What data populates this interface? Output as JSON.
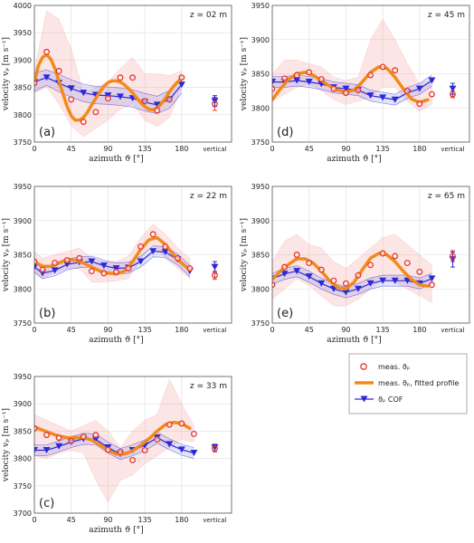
{
  "colors": {
    "measured": "#e8362a",
    "fitted": "#f28a1a",
    "cof": "#2a2ad8",
    "band_red": "#f4a3a3",
    "band_blue": "#8f8fe6",
    "grid": "#dddddd",
    "axis": "#555555"
  },
  "legend": {
    "items": [
      {
        "marker": "circle",
        "label": "meas. ϑₚ"
      },
      {
        "marker": "line",
        "label": "meas. ϑₚ, fitted profile"
      },
      {
        "marker": "triangle",
        "label": "ϑₚ COF"
      }
    ]
  },
  "axis_text": {
    "xlabel": "azimuth ϑ [°]",
    "ylabel": "velocity vₚ [m s⁻¹]",
    "vertical_tick": "vertical"
  },
  "chart_data": [
    {
      "type": "line",
      "panel_label": "(a)",
      "depth_label": "z = 02 m",
      "xlim": [
        0,
        200
      ],
      "ylim": [
        3750,
        4000
      ],
      "xticks": [
        0,
        45,
        90,
        135,
        180
      ],
      "yticks": [
        3750,
        3800,
        3850,
        3900,
        3950,
        4000
      ],
      "grid": true,
      "measured": {
        "x": [
          0,
          15,
          30,
          45,
          60,
          75,
          90,
          105,
          120,
          135,
          150,
          165,
          180
        ],
        "y": [
          3858,
          3915,
          3880,
          3828,
          3787,
          3805,
          3830,
          3868,
          3868,
          3825,
          3808,
          3828,
          3868
        ]
      },
      "fitted": {
        "x": [
          0,
          5,
          10,
          15,
          20,
          25,
          30,
          35,
          40,
          45,
          50,
          55,
          60,
          65,
          70,
          75,
          80,
          85,
          90,
          95,
          100,
          105,
          110,
          115,
          120,
          125,
          130,
          135,
          140,
          145,
          150,
          155,
          160,
          165,
          170,
          175,
          180
        ],
        "y": [
          3860,
          3890,
          3905,
          3910,
          3902,
          3885,
          3862,
          3838,
          3815,
          3798,
          3790,
          3790,
          3795,
          3805,
          3818,
          3830,
          3842,
          3852,
          3859,
          3862,
          3862,
          3860,
          3855,
          3848,
          3840,
          3831,
          3822,
          3815,
          3810,
          3809,
          3812,
          3820,
          3830,
          3842,
          3852,
          3860,
          3866
        ]
      },
      "cof": {
        "x": [
          0,
          15,
          30,
          45,
          60,
          75,
          90,
          105,
          120,
          135,
          150,
          165,
          180
        ],
        "y": [
          3860,
          3868,
          3858,
          3848,
          3840,
          3836,
          3835,
          3833,
          3830,
          3823,
          3818,
          3828,
          3855
        ]
      },
      "cof_band_upper": [
        3877,
        3882,
        3874,
        3864,
        3856,
        3852,
        3851,
        3849,
        3846,
        3839,
        3834,
        3844,
        3871
      ],
      "cof_band_lower": [
        3843,
        3854,
        3842,
        3832,
        3824,
        3820,
        3819,
        3817,
        3814,
        3807,
        3802,
        3812,
        3839
      ],
      "meas_band_upper": [
        3880,
        3990,
        3975,
        3920,
        3840,
        3850,
        3860,
        3885,
        3905,
        3875,
        3875,
        3872,
        3880
      ],
      "meas_band_lower": [
        3840,
        3850,
        3820,
        3780,
        3760,
        3775,
        3790,
        3810,
        3820,
        3790,
        3778,
        3795,
        3850
      ],
      "vertical": {
        "measured": 3820,
        "measured_err": [
          3808,
          3832
        ],
        "cof": 3825,
        "cof_err": [
          3815,
          3835
        ]
      }
    },
    {
      "type": "line",
      "panel_label": "(b)",
      "depth_label": "z = 22 m",
      "xlim": [
        0,
        200
      ],
      "ylim": [
        3750,
        3950
      ],
      "xticks": [
        0,
        45,
        90,
        135,
        180
      ],
      "yticks": [
        3750,
        3800,
        3850,
        3900,
        3950
      ],
      "grid": true,
      "measured": {
        "x": [
          0,
          10,
          25,
          40,
          55,
          70,
          85,
          100,
          115,
          130,
          145,
          160,
          175,
          190
        ],
        "y": [
          3840,
          3828,
          3838,
          3842,
          3845,
          3826,
          3823,
          3825,
          3830,
          3862,
          3880,
          3862,
          3845,
          3830
        ]
      },
      "fitted": {
        "x": [
          0,
          10,
          20,
          30,
          40,
          50,
          60,
          70,
          80,
          90,
          100,
          110,
          120,
          130,
          140,
          150,
          160,
          170,
          180,
          190
        ],
        "y": [
          3840,
          3833,
          3833,
          3838,
          3843,
          3842,
          3838,
          3832,
          3826,
          3823,
          3822,
          3826,
          3840,
          3858,
          3872,
          3875,
          3865,
          3850,
          3838,
          3828
        ]
      },
      "cof": {
        "x": [
          0,
          10,
          25,
          40,
          55,
          70,
          85,
          100,
          115,
          130,
          145,
          160,
          175,
          190
        ],
        "y": [
          3832,
          3823,
          3827,
          3836,
          3839,
          3840,
          3834,
          3830,
          3831,
          3840,
          3855,
          3854,
          3843,
          3826
        ]
      },
      "cof_band_upper": [
        3840,
        3831,
        3835,
        3844,
        3847,
        3848,
        3842,
        3838,
        3839,
        3848,
        3863,
        3862,
        3851,
        3834
      ],
      "cof_band_lower": [
        3824,
        3815,
        3819,
        3828,
        3831,
        3832,
        3826,
        3822,
        3823,
        3832,
        3847,
        3846,
        3835,
        3818
      ],
      "meas_band_upper": [
        3855,
        3845,
        3850,
        3855,
        3860,
        3845,
        3840,
        3840,
        3848,
        3875,
        3895,
        3880,
        3860,
        3845
      ],
      "meas_band_lower": [
        3825,
        3815,
        3825,
        3830,
        3830,
        3810,
        3810,
        3812,
        3815,
        3845,
        3865,
        3845,
        3830,
        3815
      ],
      "vertical": {
        "measured": 3820,
        "measured_err": [
          3814,
          3826
        ],
        "cof": 3832,
        "cof_err": [
          3824,
          3840
        ]
      }
    },
    {
      "type": "line",
      "panel_label": "(c)",
      "depth_label": "z = 33 m",
      "xlim": [
        0,
        200
      ],
      "ylim": [
        3700,
        3950
      ],
      "xticks": [
        0,
        45,
        90,
        135,
        180
      ],
      "yticks": [
        3700,
        3750,
        3800,
        3850,
        3900,
        3950
      ],
      "grid": true,
      "measured": {
        "x": [
          0,
          15,
          30,
          45,
          60,
          75,
          90,
          105,
          120,
          135,
          150,
          165,
          180,
          195
        ],
        "y": [
          3855,
          3843,
          3838,
          3832,
          3840,
          3843,
          3816,
          3812,
          3797,
          3815,
          3835,
          3862,
          3864,
          3845
        ]
      },
      "fitted": {
        "x": [
          0,
          10,
          20,
          30,
          40,
          50,
          60,
          70,
          80,
          90,
          100,
          110,
          120,
          130,
          140,
          150,
          160,
          170,
          180,
          190
        ],
        "y": [
          3858,
          3852,
          3846,
          3841,
          3838,
          3838,
          3838,
          3834,
          3825,
          3815,
          3808,
          3808,
          3814,
          3824,
          3836,
          3850,
          3862,
          3866,
          3864,
          3855
        ]
      },
      "cof": {
        "x": [
          0,
          15,
          30,
          45,
          60,
          75,
          90,
          105,
          120,
          135,
          150,
          165,
          180,
          195
        ],
        "y": [
          3815,
          3815,
          3822,
          3830,
          3836,
          3835,
          3820,
          3808,
          3815,
          3824,
          3838,
          3826,
          3816,
          3810
        ]
      },
      "cof_band_upper": [
        3825,
        3825,
        3832,
        3840,
        3846,
        3845,
        3830,
        3818,
        3825,
        3834,
        3848,
        3836,
        3826,
        3820
      ],
      "cof_band_lower": [
        3805,
        3805,
        3812,
        3820,
        3826,
        3825,
        3810,
        3798,
        3805,
        3814,
        3828,
        3816,
        3806,
        3800
      ],
      "meas_band_upper": [
        3880,
        3870,
        3860,
        3850,
        3860,
        3870,
        3850,
        3820,
        3850,
        3870,
        3880,
        3945,
        3900,
        3860
      ],
      "meas_band_lower": [
        3805,
        3800,
        3810,
        3815,
        3810,
        3760,
        3720,
        3760,
        3770,
        3790,
        3805,
        3820,
        3835,
        3830
      ],
      "vertical": {
        "measured": 3818,
        "measured_err": [
          3812,
          3824
        ],
        "cof": 3820,
        "cof_err": [
          3814,
          3826
        ]
      }
    },
    {
      "type": "line",
      "panel_label": "(d)",
      "depth_label": "z = 45 m",
      "xlim": [
        0,
        200
      ],
      "ylim": [
        3750,
        3950
      ],
      "xticks": [
        0,
        45,
        90,
        135,
        180
      ],
      "yticks": [
        3750,
        3800,
        3850,
        3900,
        3950
      ],
      "grid": true,
      "measured": {
        "x": [
          0,
          15,
          30,
          45,
          60,
          75,
          90,
          105,
          120,
          135,
          150,
          165,
          180,
          195
        ],
        "y": [
          3828,
          3843,
          3848,
          3852,
          3842,
          3828,
          3822,
          3826,
          3848,
          3860,
          3855,
          3825,
          3806,
          3820
        ]
      },
      "fitted": {
        "x": [
          0,
          10,
          20,
          30,
          40,
          50,
          60,
          70,
          80,
          90,
          100,
          110,
          120,
          130,
          140,
          150,
          160,
          170,
          180,
          190
        ],
        "y": [
          3812,
          3828,
          3842,
          3850,
          3852,
          3848,
          3840,
          3832,
          3826,
          3823,
          3826,
          3838,
          3852,
          3860,
          3858,
          3845,
          3828,
          3813,
          3808,
          3812
        ]
      },
      "cof": {
        "x": [
          0,
          15,
          30,
          45,
          60,
          75,
          90,
          105,
          120,
          135,
          150,
          165,
          180,
          195
        ],
        "y": [
          3838,
          3838,
          3840,
          3838,
          3835,
          3830,
          3828,
          3826,
          3818,
          3815,
          3812,
          3822,
          3828,
          3840
        ]
      },
      "cof_band_upper": [
        3846,
        3846,
        3848,
        3846,
        3843,
        3838,
        3836,
        3834,
        3826,
        3823,
        3820,
        3830,
        3836,
        3848
      ],
      "cof_band_lower": [
        3830,
        3830,
        3832,
        3830,
        3827,
        3822,
        3820,
        3818,
        3810,
        3807,
        3804,
        3814,
        3820,
        3832
      ],
      "meas_band_upper": [
        3850,
        3870,
        3870,
        3865,
        3860,
        3845,
        3840,
        3845,
        3900,
        3930,
        3900,
        3865,
        3835,
        3840
      ],
      "meas_band_lower": [
        3810,
        3820,
        3830,
        3835,
        3825,
        3812,
        3805,
        3810,
        3815,
        3830,
        3830,
        3810,
        3795,
        3805
      ],
      "vertical": {
        "measured": 3820,
        "measured_err": [
          3815,
          3825
        ],
        "cof": 3828,
        "cof_err": [
          3820,
          3836
        ]
      }
    },
    {
      "type": "line",
      "panel_label": "(e)",
      "depth_label": "z = 65 m",
      "xlim": [
        0,
        200
      ],
      "ylim": [
        3750,
        3950
      ],
      "xticks": [
        0,
        45,
        90,
        135,
        180
      ],
      "yticks": [
        3750,
        3800,
        3850,
        3900,
        3950
      ],
      "grid": true,
      "measured": {
        "x": [
          0,
          15,
          30,
          45,
          60,
          75,
          90,
          105,
          120,
          135,
          150,
          165,
          180,
          195
        ],
        "y": [
          3806,
          3832,
          3850,
          3838,
          3828,
          3812,
          3808,
          3820,
          3835,
          3852,
          3848,
          3838,
          3825,
          3806
        ]
      },
      "fitted": {
        "x": [
          0,
          10,
          20,
          30,
          40,
          50,
          60,
          70,
          80,
          90,
          100,
          110,
          120,
          130,
          140,
          150,
          160,
          170,
          180,
          190
        ],
        "y": [
          3814,
          3826,
          3836,
          3844,
          3844,
          3838,
          3826,
          3812,
          3802,
          3800,
          3810,
          3828,
          3845,
          3852,
          3850,
          3840,
          3826,
          3814,
          3806,
          3804
        ]
      },
      "cof": {
        "x": [
          0,
          15,
          30,
          45,
          60,
          75,
          90,
          105,
          120,
          135,
          150,
          165,
          180,
          195
        ],
        "y": [
          3815,
          3822,
          3826,
          3818,
          3808,
          3800,
          3795,
          3800,
          3808,
          3812,
          3812,
          3812,
          3808,
          3815
        ]
      },
      "cof_band_upper": [
        3823,
        3830,
        3834,
        3826,
        3816,
        3808,
        3803,
        3808,
        3816,
        3820,
        3820,
        3820,
        3816,
        3823
      ],
      "cof_band_lower": [
        3807,
        3814,
        3818,
        3810,
        3800,
        3792,
        3787,
        3792,
        3800,
        3804,
        3804,
        3804,
        3800,
        3807
      ],
      "meas_band_upper": [
        3840,
        3870,
        3880,
        3865,
        3860,
        3840,
        3830,
        3845,
        3860,
        3875,
        3880,
        3865,
        3850,
        3835
      ],
      "meas_band_lower": [
        3785,
        3800,
        3815,
        3805,
        3790,
        3775,
        3775,
        3785,
        3800,
        3815,
        3810,
        3800,
        3790,
        3780
      ],
      "vertical": {
        "measured": 3848,
        "measured_err": [
          3840,
          3856
        ],
        "cof": 3843,
        "cof_err": [
          3832,
          3854
        ]
      }
    }
  ]
}
